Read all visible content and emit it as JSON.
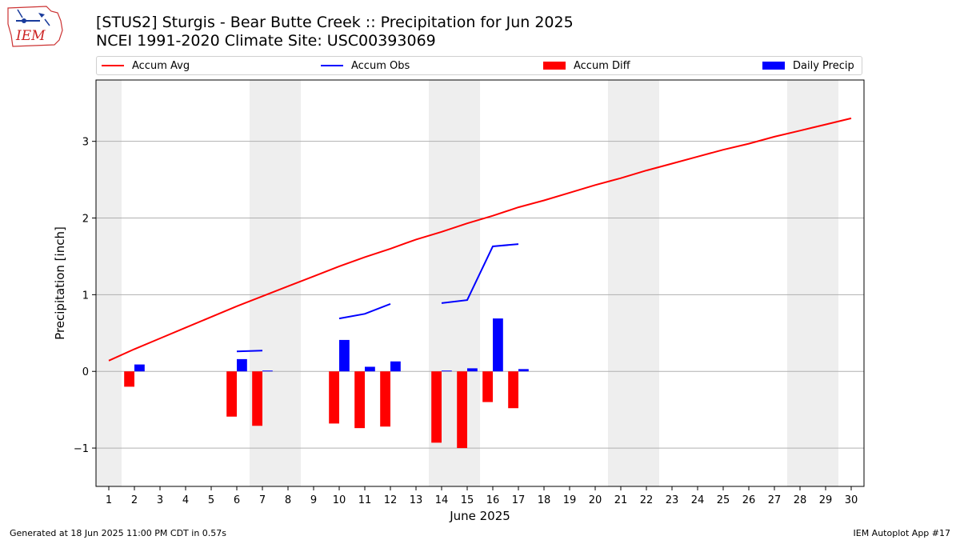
{
  "header": {
    "logo_text": "IEM",
    "title_line1": "[STUS2] Sturgis - Bear Butte Creek :: Precipitation for Jun 2025",
    "title_line2": "NCEI 1991-2020 Climate Site: USC00393069"
  },
  "footer": {
    "generated": "Generated at 18 Jun 2025 11:00 PM CDT in 0.57s",
    "app": "IEM Autoplot App #17"
  },
  "colors": {
    "avg": "#ff0000",
    "obs": "#0000ff",
    "diff": "#ff0000",
    "daily": "#0000ff",
    "weekend_shade": "#eeeeee",
    "grid": "#b0b0b0"
  },
  "chart_data": {
    "type": "bar",
    "xlabel": "June 2025",
    "ylabel": "Precipitation [inch]",
    "xlim": [
      0.5,
      30.5
    ],
    "ylim": [
      -1.5,
      3.8
    ],
    "yticks": [
      -1,
      0,
      1,
      2,
      3
    ],
    "ytick_labels": [
      "−1",
      "0",
      "1",
      "2",
      "3"
    ],
    "x": [
      1,
      2,
      3,
      4,
      5,
      6,
      7,
      8,
      9,
      10,
      11,
      12,
      13,
      14,
      15,
      16,
      17,
      18,
      19,
      20,
      21,
      22,
      23,
      24,
      25,
      26,
      27,
      28,
      29,
      30
    ],
    "grid": "horizontal",
    "legend_position": "top, above plot",
    "weekend_days": [
      1,
      7,
      8,
      14,
      15,
      21,
      22,
      28,
      29
    ],
    "series": [
      {
        "name": "Accum Avg",
        "kind": "line",
        "values": [
          0.14,
          0.29,
          0.43,
          0.57,
          0.71,
          0.85,
          0.98,
          1.11,
          1.24,
          1.37,
          1.49,
          1.6,
          1.72,
          1.82,
          1.93,
          2.03,
          2.14,
          2.23,
          2.33,
          2.43,
          2.52,
          2.62,
          2.71,
          2.8,
          2.89,
          2.97,
          3.06,
          3.14,
          3.22,
          3.3
        ]
      },
      {
        "name": "Accum Obs",
        "kind": "line",
        "values": [
          null,
          null,
          null,
          null,
          null,
          0.26,
          0.27,
          null,
          null,
          0.69,
          0.75,
          0.88,
          null,
          0.89,
          0.93,
          1.63,
          1.66,
          null,
          null,
          null,
          null,
          null,
          null,
          null,
          null,
          null,
          null,
          null,
          null,
          null
        ]
      },
      {
        "name": "Accum Diff",
        "kind": "bar",
        "values": [
          null,
          -0.2,
          null,
          null,
          null,
          -0.59,
          -0.71,
          null,
          null,
          -0.68,
          -0.74,
          -0.72,
          null,
          -0.93,
          -1.0,
          -0.4,
          -0.48,
          null,
          null,
          null,
          null,
          null,
          null,
          null,
          null,
          null,
          null,
          null,
          null,
          null
        ]
      },
      {
        "name": "Daily Precip",
        "kind": "bar",
        "values": [
          null,
          0.09,
          null,
          null,
          null,
          0.16,
          0.01,
          null,
          null,
          0.41,
          0.06,
          0.13,
          null,
          0.01,
          0.04,
          0.69,
          0.03,
          null,
          null,
          null,
          null,
          null,
          null,
          null,
          null,
          null,
          null,
          null,
          null,
          null
        ]
      }
    ]
  }
}
